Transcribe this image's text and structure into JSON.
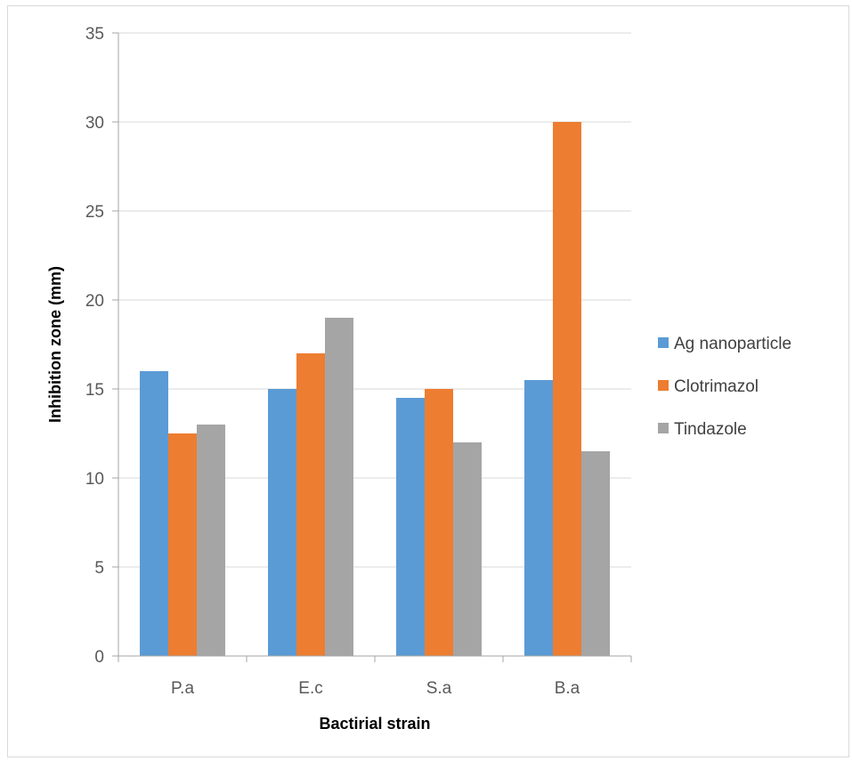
{
  "chart_data": {
    "type": "bar",
    "title": "",
    "xlabel": "Bactirial strain",
    "ylabel": "Inhibition zone (mm)",
    "categories": [
      "P.a",
      "E.c",
      "S.a",
      "B.a"
    ],
    "ylim": [
      0,
      35
    ],
    "yticks": [
      "0",
      "5",
      "10",
      "15",
      "20",
      "25",
      "30",
      "35"
    ],
    "grid": true,
    "legend_position": "right",
    "series": [
      {
        "name": "Ag nanoparticle",
        "color": "#5b9bd5",
        "values": [
          16,
          15,
          14.5,
          15.5
        ]
      },
      {
        "name": "Clotrimazol",
        "color": "#ed7d31",
        "values": [
          12.5,
          17,
          15,
          30
        ]
      },
      {
        "name": "Tindazole",
        "color": "#a5a5a5",
        "values": [
          13,
          19,
          12,
          11.5
        ]
      }
    ]
  }
}
